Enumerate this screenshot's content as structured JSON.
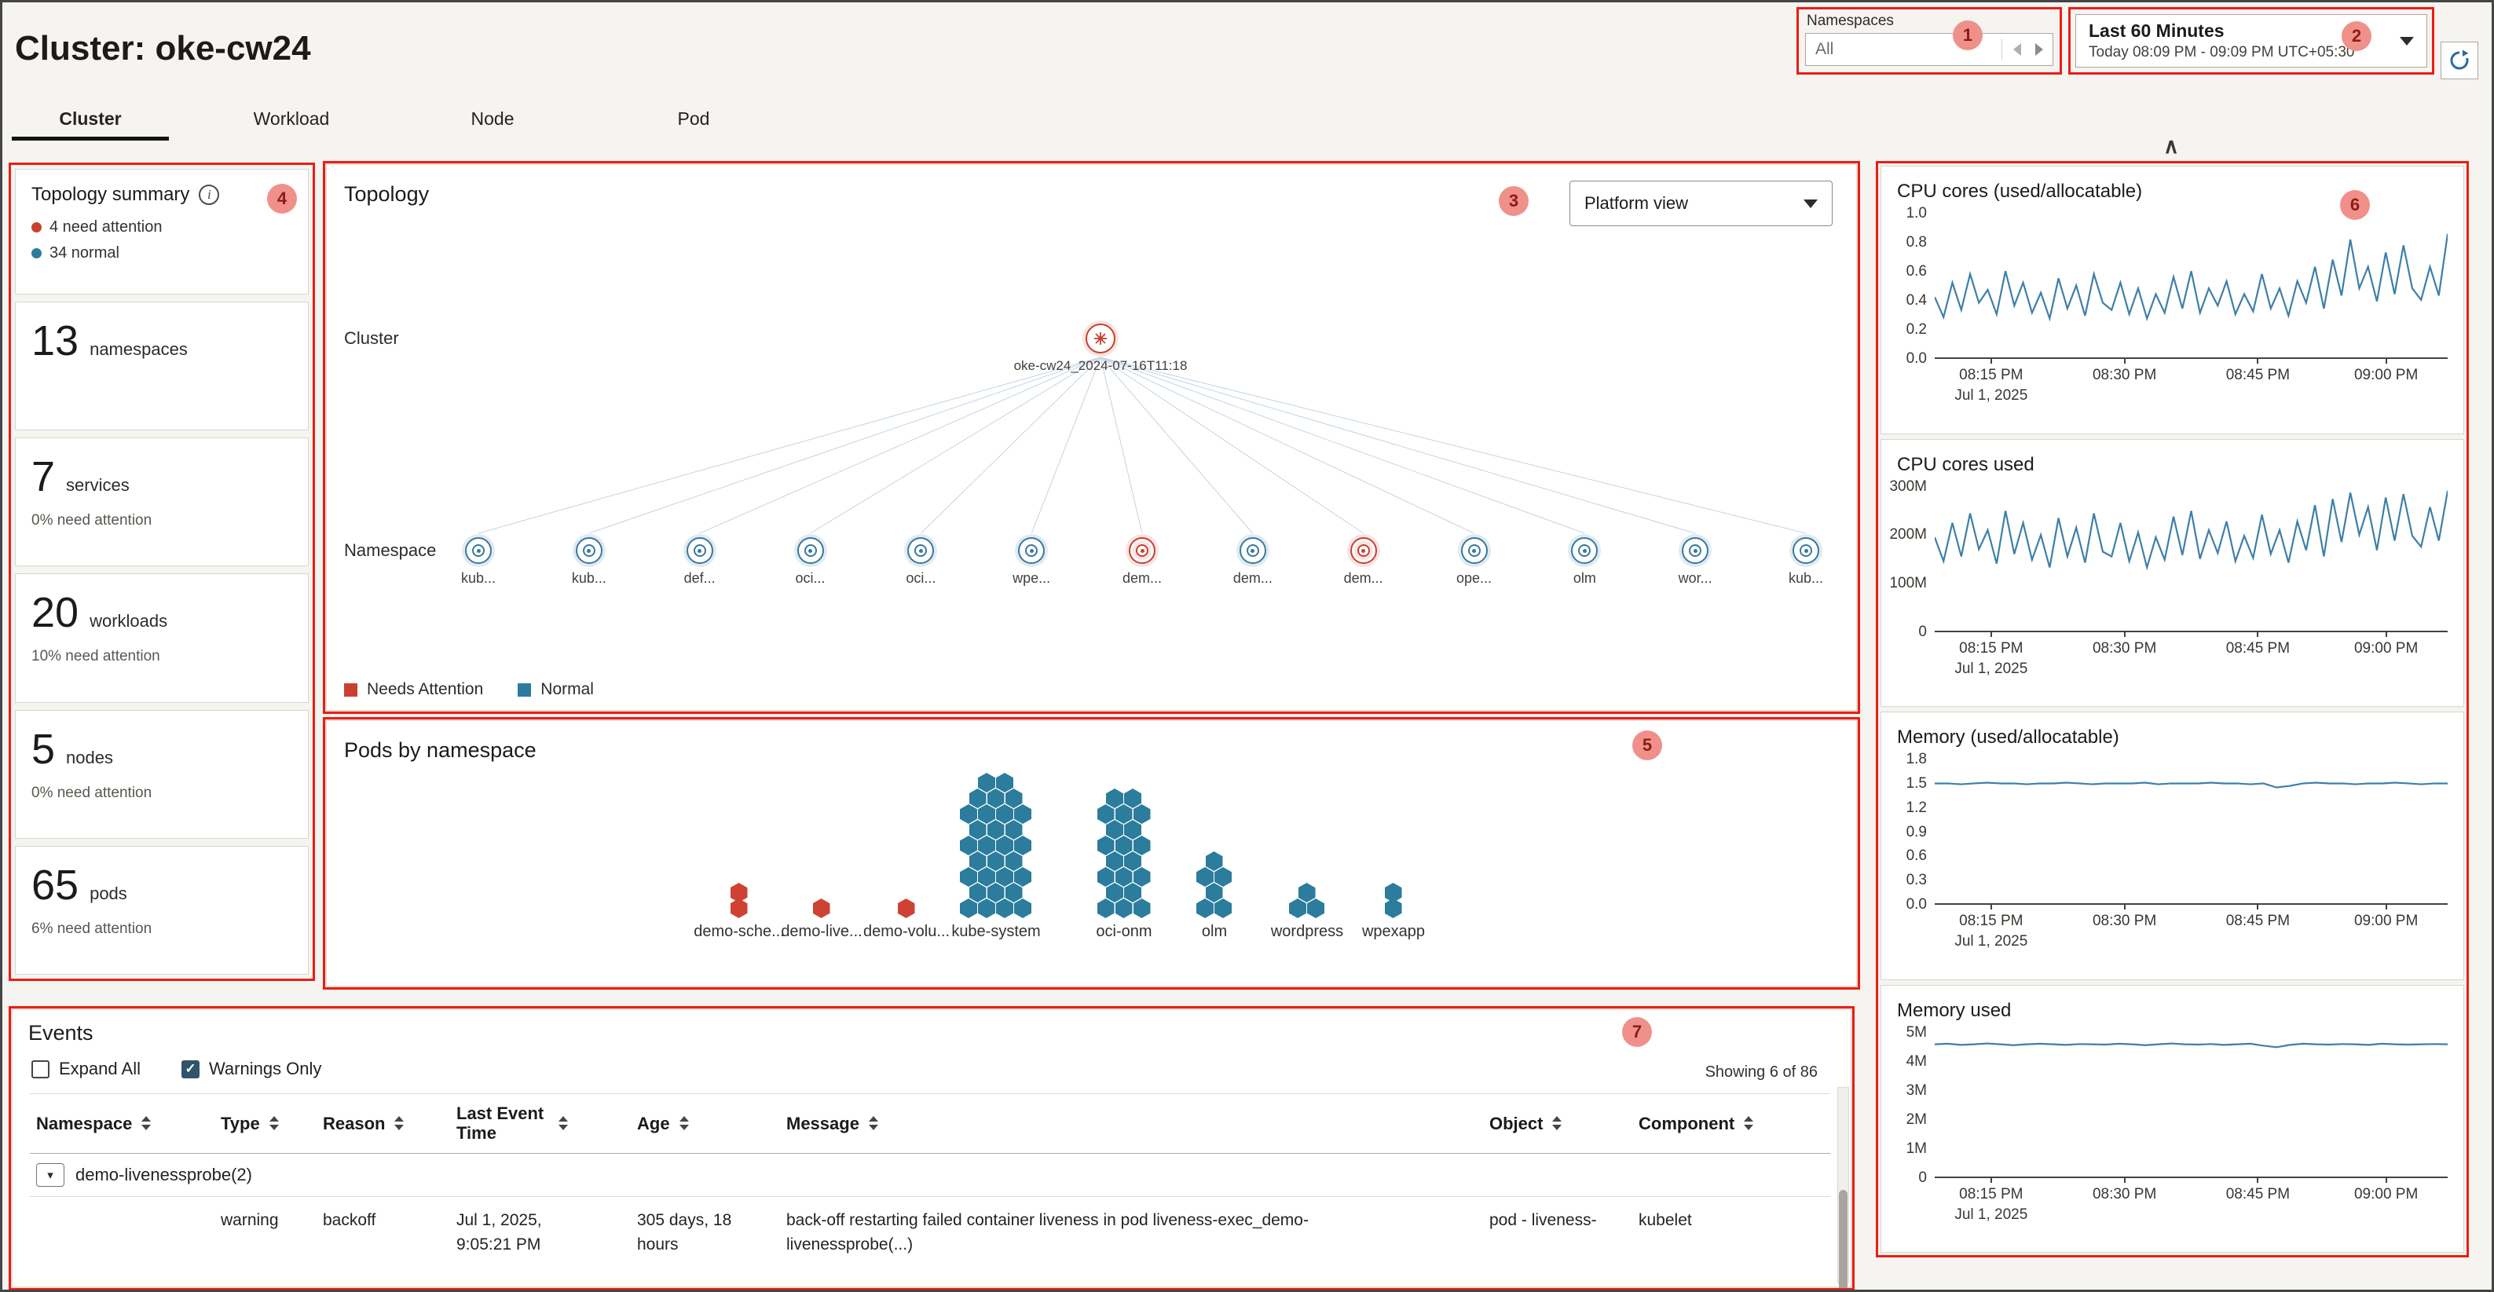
{
  "annotations": [
    "1",
    "2",
    "3",
    "4",
    "5",
    "6",
    "7"
  ],
  "icons": {
    "caret_down": "▾",
    "check": "✓",
    "info": "i",
    "collapse": "∧"
  },
  "header": {
    "title": "Cluster: oke-cw24",
    "tabs": [
      {
        "label": "Cluster",
        "active": true
      },
      {
        "label": "Workload",
        "active": false
      },
      {
        "label": "Node",
        "active": false
      },
      {
        "label": "Pod",
        "active": false
      }
    ],
    "namespaces_filter": {
      "label": "Namespaces",
      "value": "All"
    },
    "time_range": {
      "label": "Last 60 Minutes",
      "detail": "Today 08:09 PM - 09:09 PM UTC+05:30"
    }
  },
  "summary": {
    "title": "Topology summary",
    "legend": [
      {
        "label": "4 need attention",
        "color": "#c9402f"
      },
      {
        "label": "34 normal",
        "color": "#2b7c9d"
      }
    ],
    "stats": [
      {
        "value": "13",
        "label": "namespaces",
        "sub": ""
      },
      {
        "value": "7",
        "label": "services",
        "sub": "0% need attention"
      },
      {
        "value": "20",
        "label": "workloads",
        "sub": "10% need attention"
      },
      {
        "value": "5",
        "label": "nodes",
        "sub": "0% need attention"
      },
      {
        "value": "65",
        "label": "pods",
        "sub": "6% need attention"
      }
    ]
  },
  "topology": {
    "title": "Topology",
    "view_selector": "Platform view",
    "cluster_row_label": "Cluster",
    "namespace_row_label": "Namespace",
    "cluster_node": {
      "label": "oke-cw24_2024-07-16T11:18",
      "status": "attention"
    },
    "namespaces": [
      {
        "label": "kub...",
        "status": "normal"
      },
      {
        "label": "kub...",
        "status": "normal"
      },
      {
        "label": "def...",
        "status": "normal"
      },
      {
        "label": "oci...",
        "status": "normal"
      },
      {
        "label": "oci...",
        "status": "normal"
      },
      {
        "label": "wpe...",
        "status": "normal"
      },
      {
        "label": "dem...",
        "status": "attention"
      },
      {
        "label": "dem...",
        "status": "normal"
      },
      {
        "label": "dem...",
        "status": "attention"
      },
      {
        "label": "ope...",
        "status": "normal"
      },
      {
        "label": "olm",
        "status": "normal"
      },
      {
        "label": "wor...",
        "status": "normal"
      },
      {
        "label": "kub...",
        "status": "normal"
      }
    ],
    "legend": [
      {
        "label": "Needs Attention",
        "color": "#c9402f"
      },
      {
        "label": "Normal",
        "color": "#2b7c9d"
      }
    ]
  },
  "pods_by_namespace": {
    "title": "Pods by namespace",
    "groups": [
      {
        "label": "demo-sche...",
        "count": 2,
        "status": "attention",
        "cols": 1
      },
      {
        "label": "demo-live...",
        "count": 1,
        "status": "attention",
        "cols": 1
      },
      {
        "label": "demo-volu...",
        "count": 1,
        "status": "attention",
        "cols": 1
      },
      {
        "label": "kube-system",
        "count": 30,
        "status": "normal",
        "cols": 4
      },
      {
        "label": "oci-onm",
        "count": 20,
        "status": "normal",
        "cols": 3
      },
      {
        "label": "olm",
        "count": 6,
        "status": "normal",
        "cols": 2
      },
      {
        "label": "wordpress",
        "count": 3,
        "status": "normal",
        "cols": 2
      },
      {
        "label": "wpexapp",
        "count": 2,
        "status": "normal",
        "cols": 1
      }
    ]
  },
  "charts": {
    "x_ticks": [
      "08:15 PM",
      "08:30 PM",
      "08:45 PM",
      "09:00 PM"
    ],
    "x_sub": "Jul 1, 2025",
    "line_color": "#3e7fa8"
  },
  "chart_data": [
    {
      "type": "line",
      "title": "CPU cores (used/allocatable)",
      "ylim": [
        0,
        1.0
      ],
      "yticks": [
        "1.0",
        "0.8",
        "0.6",
        "0.4",
        "0.2",
        "0.0"
      ],
      "x_ticks": [
        "08:15 PM",
        "08:30 PM",
        "08:45 PM",
        "09:00 PM"
      ],
      "values": [
        0.42,
        0.28,
        0.52,
        0.33,
        0.58,
        0.38,
        0.47,
        0.3,
        0.6,
        0.36,
        0.52,
        0.31,
        0.45,
        0.27,
        0.55,
        0.34,
        0.5,
        0.29,
        0.58,
        0.38,
        0.33,
        0.52,
        0.3,
        0.48,
        0.27,
        0.44,
        0.31,
        0.56,
        0.34,
        0.6,
        0.31,
        0.48,
        0.36,
        0.53,
        0.3,
        0.44,
        0.32,
        0.58,
        0.34,
        0.48,
        0.29,
        0.53,
        0.38,
        0.63,
        0.34,
        0.68,
        0.43,
        0.82,
        0.48,
        0.63,
        0.39,
        0.73,
        0.44,
        0.78,
        0.48,
        0.4,
        0.63,
        0.43,
        0.86
      ]
    },
    {
      "type": "line",
      "title": "CPU cores used",
      "ylim": [
        0,
        300
      ],
      "yticks": [
        "300M",
        "200M",
        "100M",
        "0"
      ],
      "x_ticks": [
        "08:15 PM",
        "08:30 PM",
        "08:45 PM",
        "09:00 PM"
      ],
      "values": [
        195,
        145,
        225,
        155,
        245,
        170,
        210,
        140,
        250,
        160,
        225,
        148,
        200,
        132,
        235,
        155,
        215,
        142,
        245,
        165,
        155,
        225,
        145,
        205,
        132,
        195,
        148,
        238,
        158,
        250,
        150,
        210,
        162,
        228,
        145,
        198,
        152,
        242,
        160,
        210,
        142,
        228,
        168,
        262,
        155,
        275,
        185,
        288,
        200,
        258,
        168,
        278,
        188,
        285,
        198,
        175,
        258,
        188,
        292
      ]
    },
    {
      "type": "line",
      "title": "Memory (used/allocatable)",
      "ylim": [
        0,
        1.8
      ],
      "yticks": [
        "1.8",
        "1.5",
        "1.2",
        "0.9",
        "0.6",
        "0.3",
        "0.0"
      ],
      "x_ticks": [
        "08:15 PM",
        "08:30 PM",
        "08:45 PM",
        "09:00 PM"
      ],
      "values": [
        1.5,
        1.5,
        1.49,
        1.5,
        1.51,
        1.5,
        1.5,
        1.49,
        1.5,
        1.5,
        1.51,
        1.5,
        1.49,
        1.5,
        1.5,
        1.5,
        1.51,
        1.49,
        1.5,
        1.5,
        1.5,
        1.51,
        1.5,
        1.5,
        1.49,
        1.5,
        1.45,
        1.47,
        1.5,
        1.51,
        1.5,
        1.5,
        1.49,
        1.5,
        1.5,
        1.51,
        1.5,
        1.49,
        1.5,
        1.5
      ]
    },
    {
      "type": "line",
      "title": "Memory used",
      "ylim": [
        0,
        5
      ],
      "yticks": [
        "5M",
        "4M",
        "3M",
        "2M",
        "1M",
        "0"
      ],
      "x_ticks": [
        "08:15 PM",
        "08:30 PM",
        "08:45 PM",
        "09:00 PM"
      ],
      "values": [
        4.6,
        4.62,
        4.58,
        4.6,
        4.63,
        4.6,
        4.57,
        4.6,
        4.62,
        4.6,
        4.58,
        4.61,
        4.6,
        4.59,
        4.62,
        4.6,
        4.57,
        4.6,
        4.63,
        4.6,
        4.59,
        4.61,
        4.58,
        4.6,
        4.62,
        4.55,
        4.5,
        4.58,
        4.62,
        4.6,
        4.59,
        4.61,
        4.6,
        4.58,
        4.62,
        4.6,
        4.59,
        4.6,
        4.61,
        4.6
      ]
    }
  ],
  "events": {
    "title": "Events",
    "expand_all": "Expand All",
    "warnings_only": "Warnings Only",
    "showing": "Showing 6 of 86",
    "columns": [
      "Namespace",
      "Type",
      "Reason",
      "Last Event Time",
      "Age",
      "Message",
      "Object",
      "Component"
    ],
    "group_row": {
      "label": "demo-livenessprobe(2)"
    },
    "row": {
      "type": "warning",
      "reason": "backoff",
      "time_line1": "Jul 1, 2025,",
      "time_line2": "9:05:21 PM",
      "age_line1": "305 days, 18",
      "age_line2": "hours",
      "message_line1": "back-off restarting failed container liveness in pod liveness-exec_demo-",
      "message_line2": "livenessprobe(...)",
      "object": "pod - liveness-",
      "component": "kubelet"
    }
  }
}
